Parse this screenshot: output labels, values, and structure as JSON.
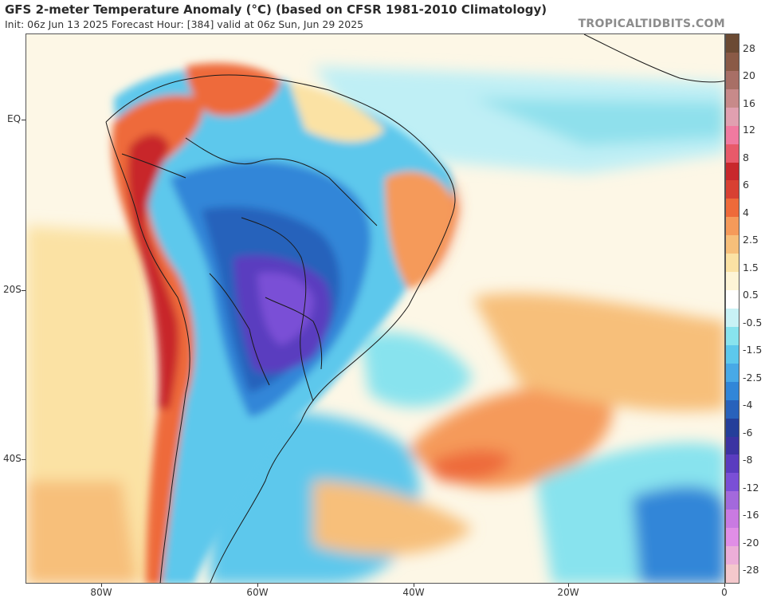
{
  "header": {
    "title": "GFS 2-meter Temperature Anomaly (°C) (based on CFSR 1981-2010 Climatology)",
    "subtitle": "Init: 06z Jun 13 2025   Forecast Hour: [384]   valid at 06z Sun, Jun 29 2025",
    "watermark": "TROPICALTIDBITS.COM"
  },
  "axes": {
    "lat_labels": [
      "EQ",
      "20S",
      "40S"
    ],
    "lon_labels": [
      "80W",
      "60W",
      "40W",
      "20W",
      "0"
    ]
  },
  "colorbar": {
    "labels": [
      "28",
      "20",
      "16",
      "12",
      "8",
      "6",
      "4",
      "2.5",
      "1.5",
      "0.5",
      "-0.5",
      "-1.5",
      "-2.5",
      "-4",
      "-6",
      "-8",
      "-12",
      "-16",
      "-20",
      "-28"
    ],
    "colors": [
      "#6b4a33",
      "#8a5a46",
      "#a86f66",
      "#c78a8a",
      "#e0a0b0",
      "#f07aa0",
      "#e85a6a",
      "#c8282c",
      "#d84032",
      "#ee6a3a",
      "#f59a5a",
      "#f7bf7a",
      "#fbe2a4",
      "#fdf4d6",
      "#ffffff",
      "#c8f2f6",
      "#88e3ee",
      "#5dc8ec",
      "#48a9e6",
      "#3186d8",
      "#2862bb",
      "#243f9a",
      "#3b33a2",
      "#5a3cbf",
      "#7a4fd6",
      "#a369dc",
      "#c97ae2",
      "#e08ee6",
      "#ecaed8",
      "#f4c8cc"
    ]
  }
}
